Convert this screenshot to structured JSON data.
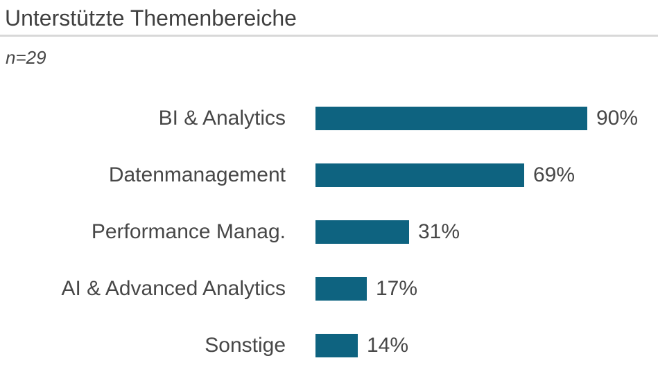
{
  "header": {
    "title": "Unterstützte Themenbereiche",
    "subtitle": "n=29"
  },
  "colors": {
    "bar": "#0e6380",
    "title_text": "#3f3f3f",
    "label_text": "#474747",
    "divider": "#d8d8d8",
    "background": "#ffffff"
  },
  "chart_data": {
    "type": "bar",
    "orientation": "horizontal",
    "title": "Unterstützte Themenbereiche",
    "subtitle": "n=29",
    "categories": [
      "BI & Analytics",
      "Datenmanagement",
      "Performance Manag.",
      "AI & Advanced Analytics",
      "Sonstige"
    ],
    "values": [
      90,
      69,
      31,
      17,
      14
    ],
    "value_labels": [
      "90%",
      "69%",
      "31%",
      "17%",
      "14%"
    ],
    "unit": "%",
    "xlim": [
      0,
      100
    ],
    "axis_ticks_visible": false,
    "grid": false,
    "legend": false,
    "bar_color": "#0e6380",
    "value_label_position": "right-of-bar",
    "category_label_position": "left-of-bar"
  }
}
